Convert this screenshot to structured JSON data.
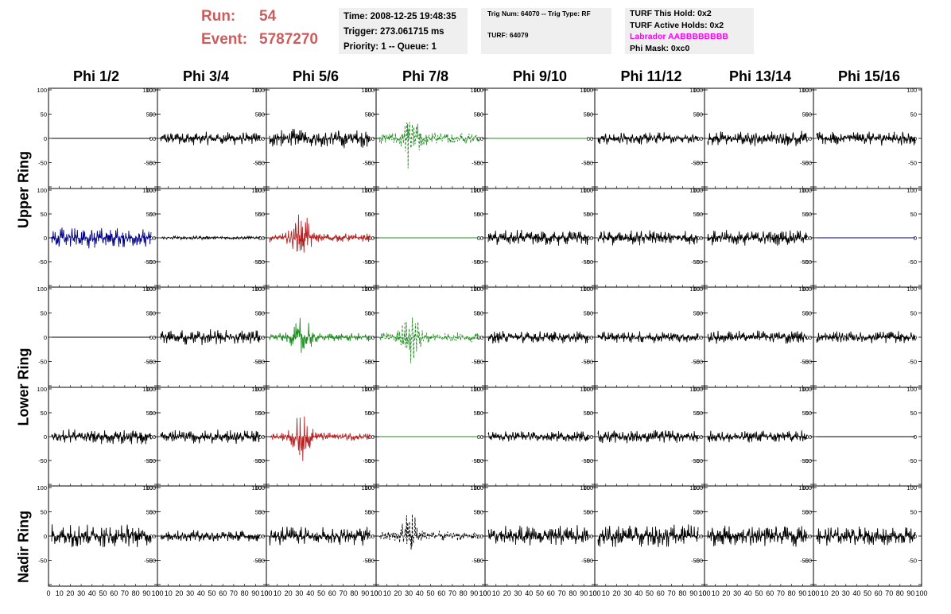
{
  "header": {
    "run_label": "Run:",
    "run_value": "54",
    "event_label": "Event:",
    "event_value": "5787270",
    "time": "Time: 2008-12-25 19:48:35",
    "trigger": "Trigger: 273.061715 ms",
    "priority": "Priority: 1 -- Queue: 1",
    "trig_num": "Trig Num: 64070 -- Trig Type: RF",
    "turf": "TURF: 64079",
    "turf_this_hold": "TURF This Hold: 0x2",
    "turf_active_holds": "TURF Active Holds: 0x2",
    "labrador": "Labrador AABBBBBBBB",
    "phi_mask": "Phi Mask: 0xc0",
    "labrador_color": "#ff00ff",
    "run_color": "#cd5c5c"
  },
  "columns": [
    "Phi 1/2",
    "Phi 3/4",
    "Phi 5/6",
    "Phi 7/8",
    "Phi 9/10",
    "Phi 11/12",
    "Phi 13/14",
    "Phi 15/16"
  ],
  "rings": [
    "Upper Ring",
    "Lower Ring",
    "Nadir Ring"
  ],
  "chart_data": {
    "type": "line",
    "description_of_grid": "5 rows x 8 columns of waveform panels",
    "x_ticks": [
      "0",
      "10",
      "20",
      "30",
      "40",
      "50",
      "60",
      "70",
      "80",
      "90",
      "100"
    ],
    "xlim": [
      0,
      100
    ],
    "ylim": [
      -100,
      100
    ],
    "y_ticks": [
      "-100",
      "-50",
      "0",
      "50",
      "100"
    ],
    "panels": [
      [
        {
          "color": "#000000",
          "amp": 0,
          "style": "solid"
        },
        {
          "color": "#000000",
          "amp": 14,
          "style": "solid"
        },
        {
          "color": "#000000",
          "amp": 20,
          "style": "solid"
        },
        {
          "color": "#228b22",
          "amp": 35,
          "style": "dashed",
          "burst": true
        },
        {
          "color": "#228b22",
          "amp": 0,
          "style": "solid"
        },
        {
          "color": "#000000",
          "amp": 13,
          "style": "solid"
        },
        {
          "color": "#000000",
          "amp": 16,
          "style": "solid"
        },
        {
          "color": "#000000",
          "amp": 15,
          "style": "solid"
        }
      ],
      [
        {
          "color": "#00008b",
          "amp": 22,
          "style": "solid"
        },
        {
          "color": "#000000",
          "amp": 4,
          "style": "solid"
        },
        {
          "color": "#b22222",
          "amp": 28,
          "style": "solid",
          "burst": true
        },
        {
          "color": "#228b22",
          "amp": 0,
          "style": "solid"
        },
        {
          "color": "#000000",
          "amp": 17,
          "style": "solid"
        },
        {
          "color": "#000000",
          "amp": 16,
          "style": "solid"
        },
        {
          "color": "#000000",
          "amp": 16,
          "style": "solid"
        },
        {
          "color": "#000080",
          "amp": 0,
          "style": "solid"
        }
      ],
      [
        {
          "color": "#000000",
          "amp": 0,
          "style": "solid"
        },
        {
          "color": "#000000",
          "amp": 17,
          "style": "solid"
        },
        {
          "color": "#228b22",
          "amp": 25,
          "style": "solid",
          "burst": true
        },
        {
          "color": "#228b22",
          "amp": 30,
          "style": "dashed",
          "burst": true
        },
        {
          "color": "#000000",
          "amp": 13,
          "style": "solid"
        },
        {
          "color": "#000000",
          "amp": 12,
          "style": "solid"
        },
        {
          "color": "#000000",
          "amp": 14,
          "style": "solid"
        },
        {
          "color": "#000000",
          "amp": 13,
          "style": "solid"
        }
      ],
      [
        {
          "color": "#000000",
          "amp": 16,
          "style": "solid"
        },
        {
          "color": "#000000",
          "amp": 15,
          "style": "solid"
        },
        {
          "color": "#b22222",
          "amp": 26,
          "style": "solid",
          "burst": true
        },
        {
          "color": "#228b22",
          "amp": 0,
          "style": "solid"
        },
        {
          "color": "#000000",
          "amp": 12,
          "style": "solid"
        },
        {
          "color": "#000000",
          "amp": 14,
          "style": "solid"
        },
        {
          "color": "#000000",
          "amp": 13,
          "style": "solid"
        },
        {
          "color": "#000000",
          "amp": 0,
          "style": "solid"
        }
      ],
      [
        {
          "color": "#000000",
          "amp": 25,
          "style": "solid"
        },
        {
          "color": "#000000",
          "amp": 12,
          "style": "solid"
        },
        {
          "color": "#000000",
          "amp": 20,
          "style": "solid"
        },
        {
          "color": "#000000",
          "amp": 30,
          "style": "dashed",
          "burst": true
        },
        {
          "color": "#000000",
          "amp": 22,
          "style": "solid"
        },
        {
          "color": "#000000",
          "amp": 25,
          "style": "solid"
        },
        {
          "color": "#000000",
          "amp": 22,
          "style": "solid"
        },
        {
          "color": "#000000",
          "amp": 20,
          "style": "solid"
        }
      ]
    ]
  }
}
